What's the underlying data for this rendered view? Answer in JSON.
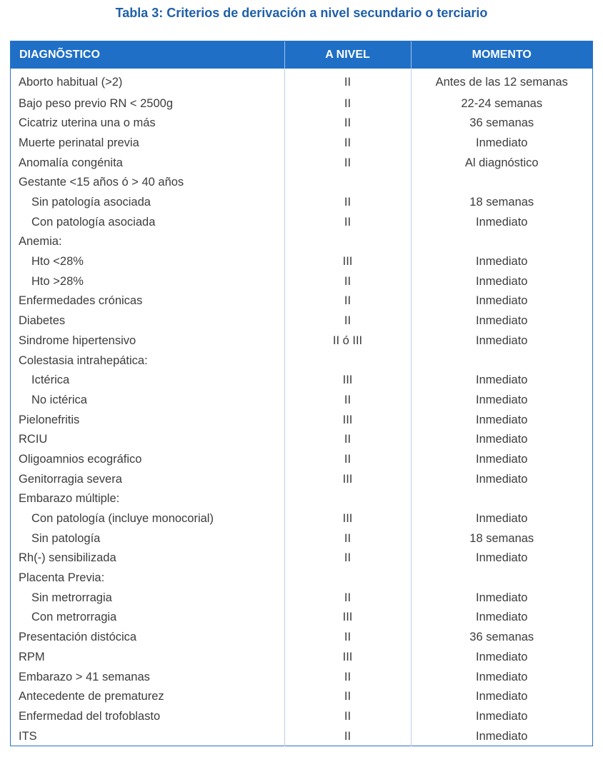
{
  "title": "Tabla 3: Criterios de derivación a nivel secundario o terciario",
  "headers": [
    "DIAGNÕSTICO",
    "A NIVEL",
    "MOMENTO"
  ],
  "rows": [
    {
      "diagnostico": "Aborto habitual (>2)",
      "nivel": "II",
      "momento": "Antes de las 12 semanas",
      "sub": false
    },
    {
      "diagnostico": "Bajo peso previo RN < 2500g",
      "nivel": "II",
      "momento": "22-24 semanas",
      "sub": false
    },
    {
      "diagnostico": "Cicatriz uterina una o más",
      "nivel": "II",
      "momento": "36 semanas",
      "sub": false
    },
    {
      "diagnostico": "Muerte perinatal previa",
      "nivel": "II",
      "momento": "Inmediato",
      "sub": false
    },
    {
      "diagnostico": "Anomalía congénita",
      "nivel": "II",
      "momento": "Al diagnóstico",
      "sub": false
    },
    {
      "diagnostico": "Gestante <15 años ó > 40 años",
      "nivel": "",
      "momento": "",
      "sub": false
    },
    {
      "diagnostico": "Sin patología asociada",
      "nivel": "II",
      "momento": "18 semanas",
      "sub": true
    },
    {
      "diagnostico": "Con patología asociada",
      "nivel": "II",
      "momento": "Inmediato",
      "sub": true
    },
    {
      "diagnostico": "Anemia:",
      "nivel": "",
      "momento": "",
      "sub": false
    },
    {
      "diagnostico": "Hto <28%",
      "nivel": "III",
      "momento": "Inmediato",
      "sub": true
    },
    {
      "diagnostico": "Hto >28%",
      "nivel": "II",
      "momento": "Inmediato",
      "sub": true
    },
    {
      "diagnostico": "Enfermedades crónicas",
      "nivel": "II",
      "momento": "Inmediato",
      "sub": false
    },
    {
      "diagnostico": "Diabetes",
      "nivel": "II",
      "momento": "Inmediato",
      "sub": false
    },
    {
      "diagnostico": "Sindrome hipertensivo",
      "nivel": "II ó III",
      "momento": "Inmediato",
      "sub": false
    },
    {
      "diagnostico": "Colestasia intrahepática:",
      "nivel": "",
      "momento": "",
      "sub": false
    },
    {
      "diagnostico": "Ictérica",
      "nivel": "III",
      "momento": "Inmediato",
      "sub": true
    },
    {
      "diagnostico": "No ictérica",
      "nivel": "II",
      "momento": "Inmediato",
      "sub": true
    },
    {
      "diagnostico": "Pielonefritis",
      "nivel": "III",
      "momento": "Inmediato",
      "sub": false
    },
    {
      "diagnostico": "RCIU",
      "nivel": "II",
      "momento": "Inmediato",
      "sub": false
    },
    {
      "diagnostico": "Oligoamnios ecográfico",
      "nivel": "II",
      "momento": "Inmediato",
      "sub": false
    },
    {
      "diagnostico": "Genitorragia severa",
      "nivel": "III",
      "momento": "Inmediato",
      "sub": false
    },
    {
      "diagnostico": "Embarazo múltiple:",
      "nivel": "",
      "momento": "",
      "sub": false
    },
    {
      "diagnostico": "Con patología (incluye monocorial)",
      "nivel": "III",
      "momento": "Inmediato",
      "sub": true
    },
    {
      "diagnostico": "Sin patología",
      "nivel": "II",
      "momento": "18 semanas",
      "sub": true
    },
    {
      "diagnostico": "Rh(-) sensibilizada",
      "nivel": "II",
      "momento": "Inmediato",
      "sub": false
    },
    {
      "diagnostico": "Placenta Previa:",
      "nivel": "",
      "momento": "",
      "sub": false
    },
    {
      "diagnostico": "Sin metrorragia",
      "nivel": "II",
      "momento": "Inmediato",
      "sub": true
    },
    {
      "diagnostico": "Con metrorragia",
      "nivel": "III",
      "momento": "Inmediato",
      "sub": true
    },
    {
      "diagnostico": "Presentación distócica",
      "nivel": "II",
      "momento": "36 semanas",
      "sub": false
    },
    {
      "diagnostico": "RPM",
      "nivel": "III",
      "momento": "Inmediato",
      "sub": false
    },
    {
      "diagnostico": "Embarazo > 41 semanas",
      "nivel": "II",
      "momento": "Inmediato",
      "sub": false
    },
    {
      "diagnostico": "Antecedente de prematurez",
      "nivel": "II",
      "momento": "Inmediato",
      "sub": false
    },
    {
      "diagnostico": "Enfermedad del trofoblasto",
      "nivel": "II",
      "momento": "Inmediato",
      "sub": false
    },
    {
      "diagnostico": "ITS",
      "nivel": "II",
      "momento": "Inmediato",
      "sub": false
    }
  ]
}
